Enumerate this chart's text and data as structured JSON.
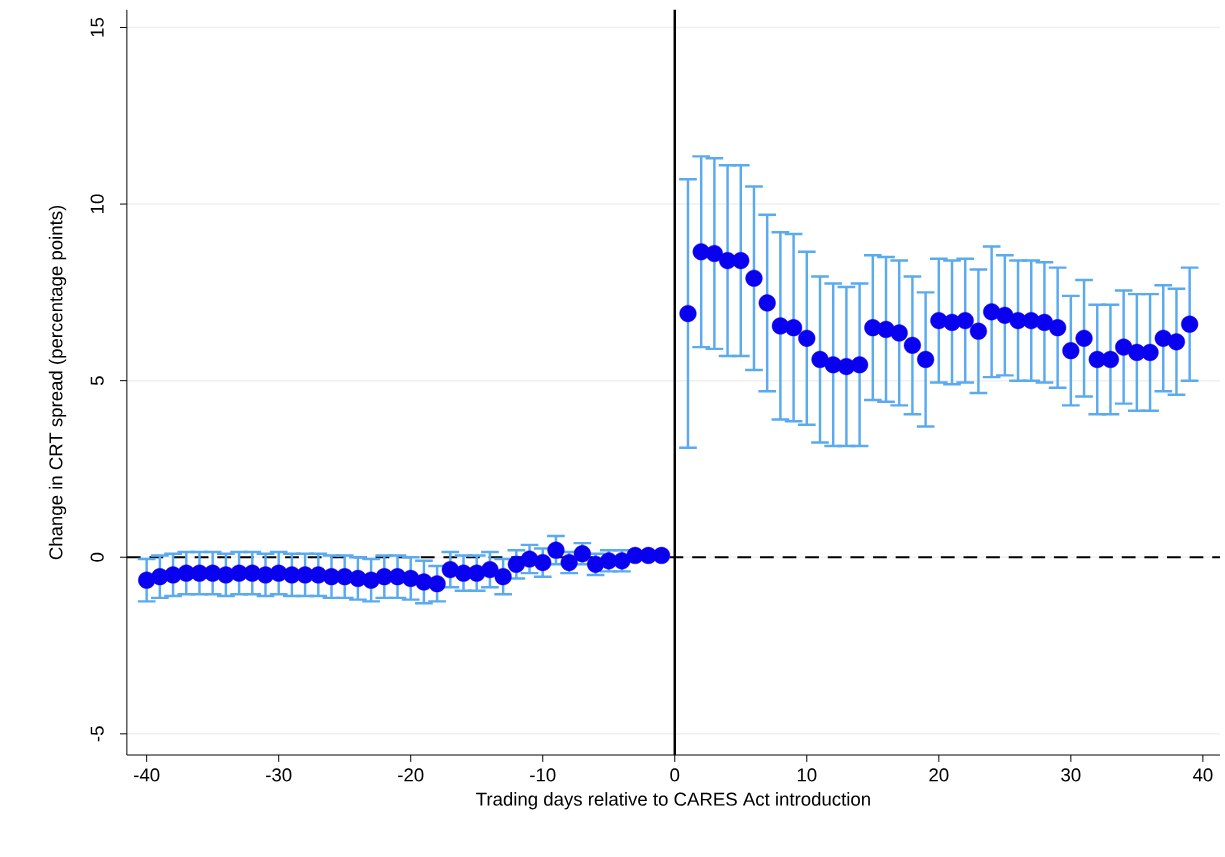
{
  "chart_data": {
    "type": "scatter",
    "xlabel": "Trading days relative to CARES Act introduction",
    "ylabel": "Change in CRT spread (percentage points)",
    "series": [
      {
        "color": "#0a00f0",
        "x": [
          -40,
          -39,
          -38,
          -37,
          -36,
          -35,
          -34,
          -33,
          -32,
          -31,
          -30,
          -29,
          -28,
          -27,
          -26,
          -25,
          -24,
          -23,
          -22,
          -21,
          -20,
          -19,
          -18,
          -17,
          -16,
          -15,
          -14,
          -13,
          -12,
          -11,
          -10,
          -9,
          -8,
          -7,
          -6,
          -5,
          -4,
          -3,
          -2,
          -1,
          1,
          2,
          3,
          4,
          5,
          6,
          7,
          8,
          9,
          10,
          11,
          12,
          13,
          14,
          15,
          16,
          17,
          18,
          19,
          20,
          21,
          22,
          23,
          24,
          25,
          26,
          27,
          28,
          29,
          30,
          31,
          32,
          33,
          34,
          35,
          36,
          37,
          38,
          39
        ],
        "values": [
          -0.65,
          -0.55,
          -0.5,
          -0.45,
          -0.45,
          -0.45,
          -0.5,
          -0.45,
          -0.45,
          -0.5,
          -0.45,
          -0.5,
          -0.5,
          -0.5,
          -0.55,
          -0.55,
          -0.6,
          -0.65,
          -0.55,
          -0.55,
          -0.6,
          -0.7,
          -0.75,
          -0.35,
          -0.45,
          -0.45,
          -0.35,
          -0.55,
          -0.2,
          -0.05,
          -0.15,
          0.2,
          -0.15,
          0.1,
          -0.2,
          -0.1,
          -0.1,
          0.05,
          0.05,
          0.05,
          6.9,
          8.65,
          8.6,
          8.4,
          8.4,
          7.9,
          7.2,
          6.55,
          6.5,
          6.2,
          5.6,
          5.45,
          5.4,
          5.45,
          6.5,
          6.45,
          6.35,
          6.0,
          5.6,
          6.7,
          6.65,
          6.7,
          6.4,
          6.95,
          6.85,
          6.7,
          6.7,
          6.65,
          6.5,
          5.85,
          6.2,
          5.6,
          5.6,
          5.95,
          5.8,
          5.8,
          6.2,
          6.1,
          6.6
        ],
        "errors": [
          0.6,
          0.6,
          0.6,
          0.6,
          0.6,
          0.6,
          0.6,
          0.6,
          0.6,
          0.6,
          0.6,
          0.6,
          0.6,
          0.6,
          0.6,
          0.6,
          0.6,
          0.6,
          0.6,
          0.6,
          0.6,
          0.6,
          0.5,
          0.5,
          0.5,
          0.5,
          0.5,
          0.5,
          0.4,
          0.4,
          0.4,
          0.4,
          0.3,
          0.3,
          0.3,
          0.3,
          0.3,
          null,
          null,
          null,
          3.8,
          2.7,
          2.7,
          2.7,
          2.7,
          2.6,
          2.5,
          2.65,
          2.65,
          2.45,
          2.35,
          2.3,
          2.25,
          2.3,
          2.05,
          2.05,
          2.05,
          1.95,
          1.9,
          1.75,
          1.75,
          1.75,
          1.75,
          1.85,
          1.7,
          1.7,
          1.7,
          1.7,
          1.7,
          1.55,
          1.65,
          1.55,
          1.55,
          1.6,
          1.65,
          1.65,
          1.5,
          1.5,
          1.6
        ]
      }
    ],
    "xlim": [
      -41.5,
      41.3
    ],
    "ylim": [
      -5.6,
      15.5
    ],
    "xticks": [
      -40,
      -30,
      -20,
      -10,
      0,
      10,
      20,
      30,
      40
    ],
    "yticks": [
      -5,
      0,
      5,
      10,
      15
    ],
    "grid": "y",
    "ref_lines": [
      {
        "axis": "x",
        "value": 0,
        "color": "#000000",
        "line_style": "solid"
      },
      {
        "axis": "y",
        "value": 0,
        "color": "#000000",
        "line_style": "dashed"
      }
    ]
  }
}
